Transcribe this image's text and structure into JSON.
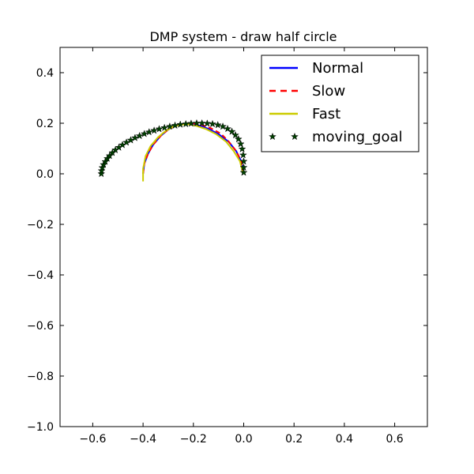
{
  "chart_data": {
    "type": "line",
    "title": "DMP system - draw half circle",
    "xlabel": "",
    "ylabel": "",
    "xlim": [
      -0.73,
      0.73
    ],
    "ylim": [
      -1.0,
      0.5
    ],
    "x_ticks": [
      -0.6,
      -0.4,
      -0.2,
      0.0,
      0.2,
      0.4,
      0.6
    ],
    "x_tick_labels": [
      "−0.6",
      "−0.4",
      "−0.2",
      "0.0",
      "0.2",
      "0.4",
      "0.6"
    ],
    "y_ticks": [
      -1.0,
      -0.8,
      -0.6,
      -0.4,
      -0.2,
      0.0,
      0.2,
      0.4
    ],
    "y_tick_labels": [
      "−1.0",
      "−0.8",
      "−0.6",
      "−0.4",
      "−0.2",
      "0.0",
      "0.2",
      "0.4"
    ],
    "grid": false,
    "legend_position": "top-right",
    "series": [
      {
        "name": "Normal",
        "color": "#0000ff",
        "style": "solid",
        "points": [
          [
            -0.4,
            0.0
          ],
          [
            -0.395,
            0.04
          ],
          [
            -0.38,
            0.08
          ],
          [
            -0.36,
            0.115
          ],
          [
            -0.33,
            0.15
          ],
          [
            -0.3,
            0.175
          ],
          [
            -0.27,
            0.19
          ],
          [
            -0.24,
            0.197
          ],
          [
            -0.21,
            0.198
          ],
          [
            -0.18,
            0.192
          ],
          [
            -0.14,
            0.178
          ],
          [
            -0.1,
            0.157
          ],
          [
            -0.06,
            0.127
          ],
          [
            -0.03,
            0.09
          ],
          [
            -0.01,
            0.05
          ],
          [
            0.0,
            0.0
          ]
        ]
      },
      {
        "name": "Slow",
        "color": "#ff0000",
        "style": "dashed",
        "points": [
          [
            -0.4,
            0.0
          ],
          [
            -0.395,
            0.04
          ],
          [
            -0.38,
            0.08
          ],
          [
            -0.36,
            0.115
          ],
          [
            -0.33,
            0.15
          ],
          [
            -0.3,
            0.175
          ],
          [
            -0.27,
            0.19
          ],
          [
            -0.24,
            0.198
          ],
          [
            -0.2,
            0.2
          ],
          [
            -0.17,
            0.195
          ],
          [
            -0.13,
            0.18
          ],
          [
            -0.09,
            0.158
          ],
          [
            -0.06,
            0.128
          ],
          [
            -0.03,
            0.09
          ],
          [
            -0.01,
            0.05
          ],
          [
            0.0,
            0.0
          ]
        ]
      },
      {
        "name": "Fast",
        "color": "#cccc00",
        "style": "solid",
        "points": [
          [
            -0.4,
            -0.03
          ],
          [
            -0.4,
            0.02
          ],
          [
            -0.39,
            0.07
          ],
          [
            -0.37,
            0.11
          ],
          [
            -0.34,
            0.145
          ],
          [
            -0.31,
            0.17
          ],
          [
            -0.28,
            0.186
          ],
          [
            -0.25,
            0.195
          ],
          [
            -0.22,
            0.196
          ],
          [
            -0.19,
            0.19
          ],
          [
            -0.15,
            0.177
          ],
          [
            -0.11,
            0.157
          ],
          [
            -0.07,
            0.127
          ],
          [
            -0.04,
            0.09
          ],
          [
            -0.015,
            0.05
          ],
          [
            -0.005,
            0.01
          ]
        ]
      },
      {
        "name": "moving_goal",
        "color": "#004000",
        "style": "stars",
        "points": [
          [
            -0.566,
            0.0
          ],
          [
            -0.565,
            0.012
          ],
          [
            -0.562,
            0.024
          ],
          [
            -0.557,
            0.036
          ],
          [
            -0.55,
            0.048
          ],
          [
            -0.542,
            0.06
          ],
          [
            -0.533,
            0.071
          ],
          [
            -0.522,
            0.083
          ],
          [
            -0.51,
            0.094
          ],
          [
            -0.496,
            0.104
          ],
          [
            -0.482,
            0.114
          ],
          [
            -0.466,
            0.124
          ],
          [
            -0.449,
            0.133
          ],
          [
            -0.432,
            0.142
          ],
          [
            -0.414,
            0.15
          ],
          [
            -0.395,
            0.158
          ],
          [
            -0.376,
            0.165
          ],
          [
            -0.356,
            0.171
          ],
          [
            -0.336,
            0.177
          ],
          [
            -0.315,
            0.182
          ],
          [
            -0.294,
            0.187
          ],
          [
            -0.273,
            0.191
          ],
          [
            -0.252,
            0.195
          ],
          [
            -0.23,
            0.197
          ],
          [
            -0.209,
            0.199
          ],
          [
            -0.187,
            0.2
          ],
          [
            -0.166,
            0.2
          ],
          [
            -0.145,
            0.199
          ],
          [
            -0.124,
            0.197
          ],
          [
            -0.103,
            0.193
          ],
          [
            -0.083,
            0.187
          ],
          [
            -0.064,
            0.178
          ],
          [
            -0.047,
            0.167
          ],
          [
            -0.033,
            0.153
          ],
          [
            -0.021,
            0.137
          ],
          [
            -0.012,
            0.118
          ],
          [
            -0.006,
            0.098
          ],
          [
            -0.002,
            0.074
          ],
          [
            0.0,
            0.049
          ],
          [
            0.0,
            0.025
          ],
          [
            0.0,
            0.005
          ]
        ]
      }
    ]
  }
}
